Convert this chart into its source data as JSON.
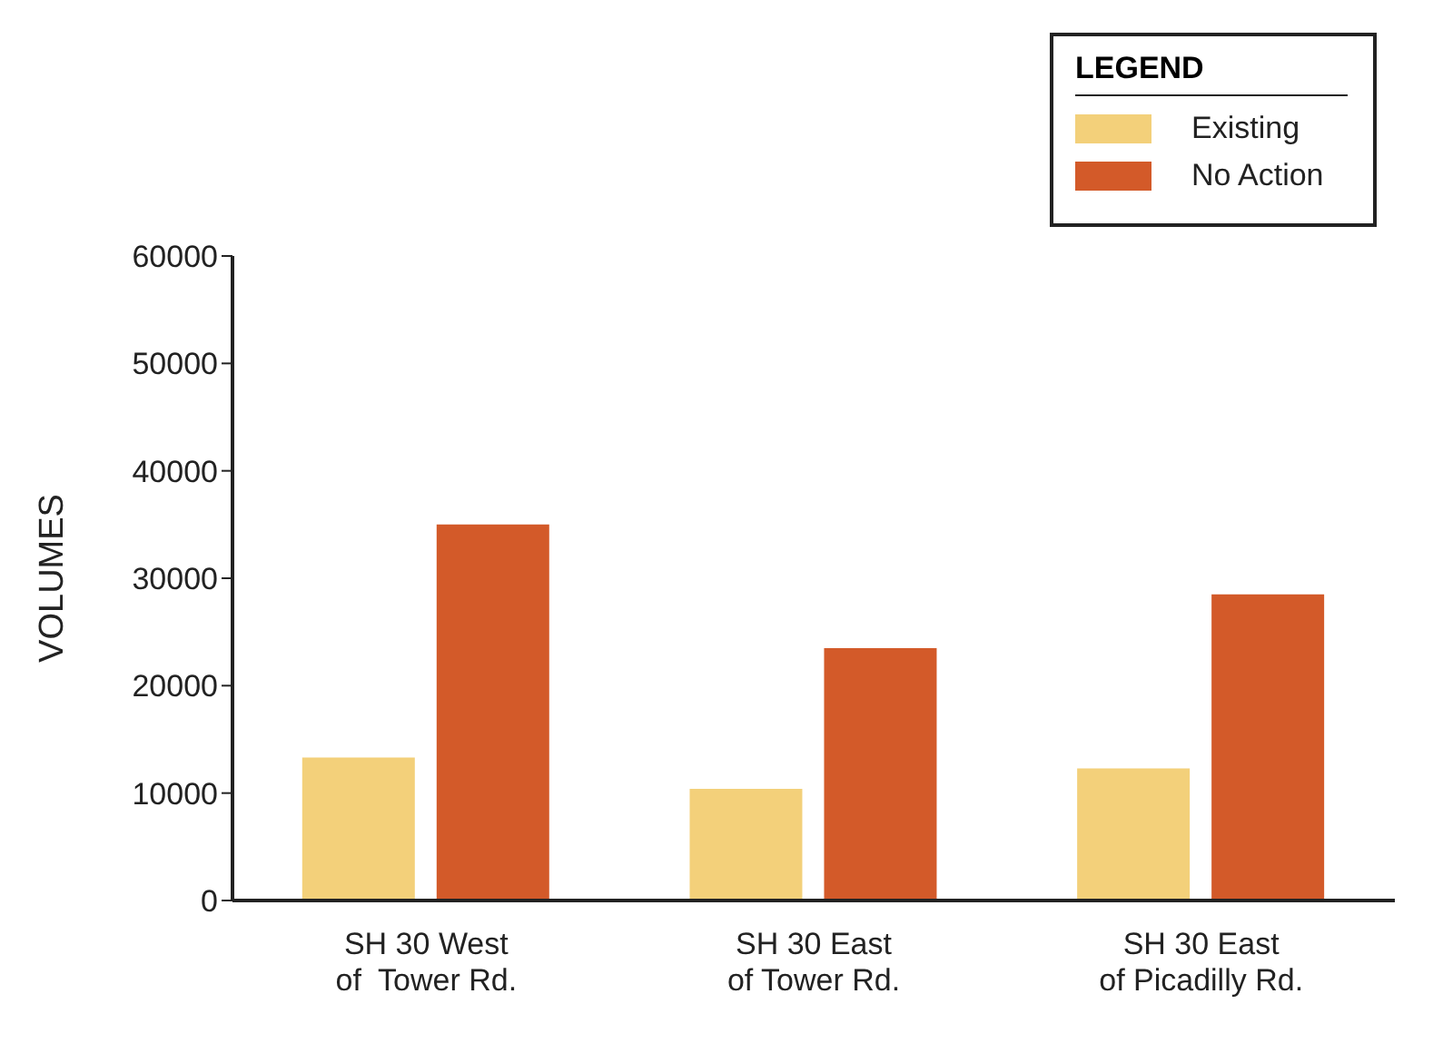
{
  "chart_data": {
    "type": "bar",
    "ylabel": "VOLUMES",
    "legend_title": "LEGEND",
    "categories": [
      "SH 30 West\nof  Tower Rd.",
      "SH 30 East\nof Tower Rd.",
      "SH 30 East\nof Picadilly Rd."
    ],
    "series": [
      {
        "name": "Existing",
        "color": "#f3d07a",
        "values": [
          13300,
          10400,
          12300
        ]
      },
      {
        "name": "No Action",
        "color": "#d35a29",
        "values": [
          35000,
          23500,
          28500
        ]
      }
    ],
    "ylim": [
      0,
      60000
    ],
    "yticks": [
      0,
      10000,
      20000,
      30000,
      40000,
      50000,
      60000
    ],
    "grid": false,
    "legend": "top right"
  }
}
